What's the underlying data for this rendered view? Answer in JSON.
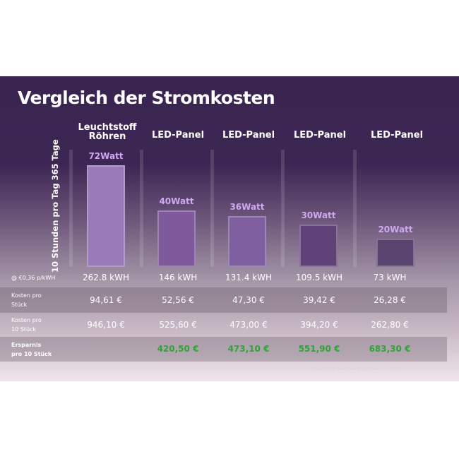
{
  "title": "Vergleich der Stromkosten",
  "axis_label": "10 Stunden pro Tag 365 Tage",
  "chart_data": {
    "type": "bar",
    "title": "Vergleich der Stromkosten",
    "ylabel": "10 Stunden pro Tag 365 Tage",
    "categories": [
      "Leuchtstoff Röhren",
      "LED-Panel",
      "LED-Panel",
      "LED-Panel",
      "LED-Panel"
    ],
    "values": [
      72,
      40,
      36,
      30,
      20
    ],
    "value_labels": [
      "72Watt",
      "40Watt",
      "36Watt",
      "30Watt",
      "20Watt"
    ],
    "unit": "Watt",
    "bar_colors": [
      "#9a7ab8",
      "#7e5a9c",
      "#7e5e9e",
      "#604278",
      "#5a4570"
    ],
    "grid": false
  },
  "table": {
    "rows": [
      {
        "label": "@ €0,36 p/kWH",
        "label2": "",
        "values": [
          "262.8 kWH",
          "146 kWH",
          "131.4 kWH",
          "109.5 kWH",
          "73 kWH"
        ]
      },
      {
        "label": "Kosten pro",
        "label2": "Stück",
        "values": [
          "94,61 €",
          "52,56 €",
          "47,30 €",
          "39,42 €",
          "26,28 €"
        ]
      },
      {
        "label": "Kosten pro",
        "label2": "10 Stück",
        "values": [
          "946,10 €",
          "525,60 €",
          "473,00 €",
          "394,20 €",
          "262,80 €"
        ]
      },
      {
        "label": "Ersparnis",
        "label2": "pro 10 Stück",
        "values": [
          "",
          "420,50 €",
          "473,10 €",
          "551,90 €",
          "683,30 €"
        ]
      }
    ],
    "savings_color": "#2fa533"
  },
  "footnote": "*Basierend auf Energiepreisen 05-2024"
}
